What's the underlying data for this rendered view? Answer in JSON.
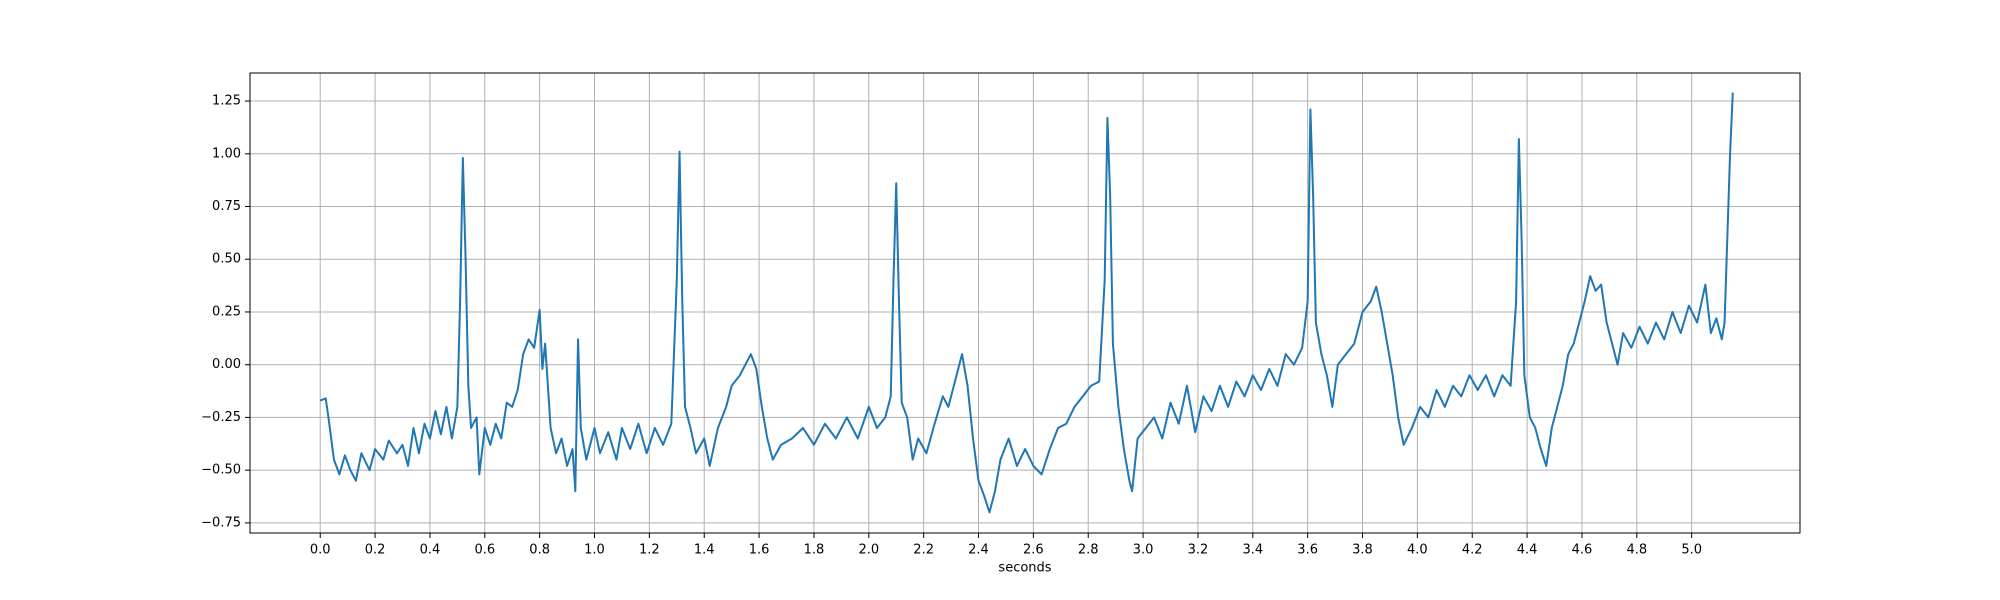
{
  "chart_data": {
    "type": "line",
    "xlabel": "seconds",
    "color": "#1f77b4",
    "grid": true,
    "xlim": [
      -0.256,
      5.395
    ],
    "ylim": [
      -0.798,
      1.383
    ],
    "xticks": [
      {
        "value": 0,
        "label": "0.0"
      },
      0.2,
      0.4,
      0.6,
      0.8,
      {
        "value": 1,
        "label": "1.0"
      },
      1.2,
      1.4,
      1.6,
      1.8,
      {
        "value": 2,
        "label": "2.0"
      },
      2.2,
      2.4,
      2.6,
      2.8,
      {
        "value": 3,
        "label": "3.0"
      },
      3.2,
      3.4,
      3.6,
      3.8,
      {
        "value": 4,
        "label": "4.0"
      },
      4.2,
      4.4,
      4.6,
      4.8,
      {
        "value": 5,
        "label": "5.0"
      }
    ],
    "yticks": [
      {
        "value": -0.75,
        "label": "−0.75"
      },
      {
        "value": -0.5,
        "label": "−0.50"
      },
      {
        "value": -0.25,
        "label": "−0.25"
      },
      {
        "value": 0,
        "label": "0.00"
      },
      {
        "value": 0.25,
        "label": "0.25"
      },
      {
        "value": 0.5,
        "label": "0.50"
      },
      {
        "value": 0.75,
        "label": "0.75"
      },
      {
        "value": 1,
        "label": "1.00"
      },
      {
        "value": 1.25,
        "label": "1.25"
      }
    ],
    "x": [
      0.0,
      0.02,
      0.03,
      0.05,
      0.07,
      0.09,
      0.11,
      0.13,
      0.15,
      0.18,
      0.2,
      0.23,
      0.25,
      0.28,
      0.3,
      0.32,
      0.34,
      0.36,
      0.38,
      0.4,
      0.42,
      0.44,
      0.46,
      0.48,
      0.5,
      0.51,
      0.52,
      0.53,
      0.54,
      0.55,
      0.57,
      0.58,
      0.6,
      0.62,
      0.64,
      0.66,
      0.68,
      0.7,
      0.72,
      0.74,
      0.76,
      0.78,
      0.8,
      0.81,
      0.82,
      0.84,
      0.86,
      0.88,
      0.9,
      0.92,
      0.93,
      0.94,
      0.95,
      0.97,
      1.0,
      1.02,
      1.05,
      1.08,
      1.1,
      1.13,
      1.16,
      1.19,
      1.22,
      1.25,
      1.28,
      1.3,
      1.31,
      1.32,
      1.33,
      1.35,
      1.37,
      1.4,
      1.42,
      1.45,
      1.48,
      1.5,
      1.53,
      1.55,
      1.57,
      1.59,
      1.61,
      1.63,
      1.65,
      1.68,
      1.72,
      1.76,
      1.8,
      1.84,
      1.88,
      1.92,
      1.96,
      2.0,
      2.03,
      2.06,
      2.08,
      2.09,
      2.1,
      2.11,
      2.12,
      2.14,
      2.16,
      2.18,
      2.21,
      2.24,
      2.27,
      2.29,
      2.32,
      2.34,
      2.36,
      2.38,
      2.4,
      2.42,
      2.44,
      2.46,
      2.48,
      2.51,
      2.54,
      2.57,
      2.6,
      2.63,
      2.66,
      2.69,
      2.72,
      2.75,
      2.78,
      2.81,
      2.84,
      2.86,
      2.87,
      2.88,
      2.89,
      2.91,
      2.93,
      2.95,
      2.96,
      2.98,
      3.01,
      3.04,
      3.07,
      3.1,
      3.13,
      3.16,
      3.19,
      3.22,
      3.25,
      3.28,
      3.31,
      3.34,
      3.37,
      3.4,
      3.43,
      3.46,
      3.49,
      3.52,
      3.55,
      3.58,
      3.6,
      3.61,
      3.62,
      3.63,
      3.65,
      3.67,
      3.69,
      3.71,
      3.74,
      3.77,
      3.8,
      3.83,
      3.85,
      3.87,
      3.89,
      3.91,
      3.93,
      3.95,
      3.98,
      4.01,
      4.04,
      4.07,
      4.1,
      4.13,
      4.16,
      4.19,
      4.22,
      4.25,
      4.28,
      4.31,
      4.34,
      4.36,
      4.37,
      4.38,
      4.39,
      4.41,
      4.43,
      4.45,
      4.47,
      4.49,
      4.51,
      4.53,
      4.55,
      4.57,
      4.59,
      4.61,
      4.63,
      4.65,
      4.67,
      4.69,
      4.71,
      4.73,
      4.75,
      4.78,
      4.81,
      4.84,
      4.87,
      4.9,
      4.93,
      4.96,
      4.99,
      5.02,
      5.05,
      5.07,
      5.09,
      5.11,
      5.12,
      5.13,
      5.14,
      5.15
    ],
    "values": [
      -0.17,
      -0.16,
      -0.25,
      -0.45,
      -0.52,
      -0.43,
      -0.5,
      -0.55,
      -0.42,
      -0.5,
      -0.4,
      -0.45,
      -0.36,
      -0.42,
      -0.38,
      -0.48,
      -0.3,
      -0.42,
      -0.28,
      -0.35,
      -0.22,
      -0.33,
      -0.2,
      -0.35,
      -0.2,
      0.3,
      0.98,
      0.5,
      -0.1,
      -0.3,
      -0.25,
      -0.52,
      -0.3,
      -0.38,
      -0.28,
      -0.35,
      -0.18,
      -0.2,
      -0.12,
      0.05,
      0.12,
      0.08,
      0.26,
      -0.02,
      0.1,
      -0.3,
      -0.42,
      -0.35,
      -0.48,
      -0.4,
      -0.6,
      0.12,
      -0.3,
      -0.45,
      -0.3,
      -0.42,
      -0.32,
      -0.45,
      -0.3,
      -0.4,
      -0.28,
      -0.42,
      -0.3,
      -0.38,
      -0.28,
      0.4,
      1.01,
      0.3,
      -0.2,
      -0.3,
      -0.42,
      -0.35,
      -0.48,
      -0.3,
      -0.2,
      -0.1,
      -0.05,
      0.0,
      0.05,
      -0.02,
      -0.2,
      -0.35,
      -0.45,
      -0.38,
      -0.35,
      -0.3,
      -0.38,
      -0.28,
      -0.35,
      -0.25,
      -0.35,
      -0.2,
      -0.3,
      -0.25,
      -0.15,
      0.4,
      0.86,
      0.3,
      -0.18,
      -0.25,
      -0.45,
      -0.35,
      -0.42,
      -0.28,
      -0.15,
      -0.2,
      -0.05,
      0.05,
      -0.1,
      -0.35,
      -0.55,
      -0.62,
      -0.7,
      -0.6,
      -0.45,
      -0.35,
      -0.48,
      -0.4,
      -0.48,
      -0.52,
      -0.4,
      -0.3,
      -0.28,
      -0.2,
      -0.15,
      -0.1,
      -0.08,
      0.4,
      1.17,
      0.8,
      0.1,
      -0.2,
      -0.4,
      -0.55,
      -0.6,
      -0.35,
      -0.3,
      -0.25,
      -0.35,
      -0.18,
      -0.28,
      -0.1,
      -0.32,
      -0.15,
      -0.22,
      -0.1,
      -0.2,
      -0.08,
      -0.15,
      -0.05,
      -0.12,
      -0.02,
      -0.1,
      0.05,
      0.0,
      0.08,
      0.3,
      1.21,
      0.8,
      0.2,
      0.05,
      -0.05,
      -0.2,
      0.0,
      0.05,
      0.1,
      0.25,
      0.3,
      0.37,
      0.25,
      0.1,
      -0.05,
      -0.25,
      -0.38,
      -0.3,
      -0.2,
      -0.25,
      -0.12,
      -0.2,
      -0.1,
      -0.15,
      -0.05,
      -0.12,
      -0.05,
      -0.15,
      -0.05,
      -0.1,
      0.3,
      1.07,
      0.6,
      -0.05,
      -0.25,
      -0.3,
      -0.4,
      -0.48,
      -0.3,
      -0.2,
      -0.1,
      0.05,
      0.1,
      0.2,
      0.3,
      0.42,
      0.35,
      0.38,
      0.2,
      0.1,
      0.0,
      0.15,
      0.08,
      0.18,
      0.1,
      0.2,
      0.12,
      0.25,
      0.15,
      0.28,
      0.2,
      0.38,
      0.15,
      0.22,
      0.12,
      0.2,
      0.6,
      1.0,
      1.29
    ]
  }
}
